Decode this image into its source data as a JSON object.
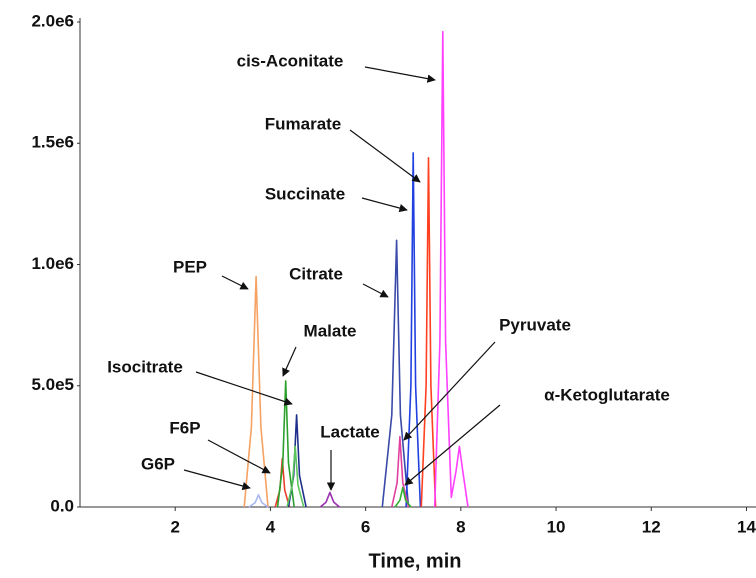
{
  "chart_data": {
    "type": "line",
    "x_label": "Time, min",
    "xlim": [
      0,
      14.2
    ],
    "xticks": [
      2,
      4,
      6,
      8,
      10,
      12,
      14
    ],
    "ylim": [
      0,
      2000000
    ],
    "yticks": [
      {
        "value": 0,
        "label": "0.0"
      },
      {
        "value": 500000,
        "label": "5.0e5"
      },
      {
        "value": 1000000,
        "label": "1.0e6"
      },
      {
        "value": 1500000,
        "label": "1.5e6"
      },
      {
        "value": 2000000,
        "label": "2.0e6"
      }
    ],
    "series": [
      {
        "name": "PEP",
        "color": "#f5a263",
        "x": [
          3.45,
          3.6,
          3.7,
          3.8,
          3.95
        ],
        "values": [
          0,
          330000,
          950000,
          330000,
          0
        ]
      },
      {
        "name": "G6P",
        "color": "#a7b8f2",
        "x": [
          3.55,
          3.68,
          3.75,
          3.82,
          3.95
        ],
        "values": [
          0,
          18000,
          50000,
          18000,
          0
        ]
      },
      {
        "name": "F6P",
        "color": "#e8402a",
        "x": [
          4.1,
          4.2,
          4.25,
          4.3,
          4.4
        ],
        "values": [
          0,
          70000,
          200000,
          70000,
          0
        ]
      },
      {
        "name": "Malate",
        "color": "#2ca02c",
        "x": [
          4.15,
          4.26,
          4.32,
          4.38,
          4.5
        ],
        "values": [
          0,
          180000,
          520000,
          180000,
          0
        ]
      },
      {
        "name": "Isocitrate",
        "color": "#1f2f8a",
        "x": [
          4.38,
          4.49,
          4.55,
          4.61,
          4.75
        ],
        "values": [
          0,
          130000,
          380000,
          130000,
          0
        ]
      },
      {
        "color": "#5cc45c",
        "x": [
          4.35,
          4.46,
          4.52,
          4.58,
          4.7
        ],
        "values": [
          0,
          90000,
          250000,
          90000,
          0
        ]
      },
      {
        "name": "Lactate",
        "color": "#9b30b0",
        "x": [
          5.05,
          5.17,
          5.25,
          5.33,
          5.45
        ],
        "values": [
          0,
          20000,
          60000,
          20000,
          0
        ]
      },
      {
        "name": "Citrate",
        "color": "#3a4aa8",
        "x": [
          6.35,
          6.55,
          6.65,
          6.73,
          6.9
        ],
        "values": [
          0,
          380000,
          1100000,
          380000,
          0
        ]
      },
      {
        "name": "Succinate",
        "color": "#2040e0",
        "x": [
          6.85,
          6.95,
          7.0,
          7.05,
          7.15
        ],
        "values": [
          0,
          500000,
          1460000,
          500000,
          0
        ]
      },
      {
        "name": "Fumarate",
        "color": "#ff4020",
        "x": [
          7.17,
          7.27,
          7.32,
          7.37,
          7.47
        ],
        "values": [
          0,
          500000,
          1440000,
          500000,
          0
        ]
      },
      {
        "name": "cis-Aconitate",
        "color": "#ff40ff",
        "x": [
          7.45,
          7.56,
          7.62,
          7.68,
          7.8,
          7.9,
          7.97,
          8.04,
          8.15
        ],
        "values": [
          0,
          680000,
          1960000,
          680000,
          40000,
          150000,
          250000,
          150000,
          0
        ]
      },
      {
        "name": "Pyruvate",
        "color": "#e040a0",
        "x": [
          6.55,
          6.66,
          6.72,
          6.78,
          6.9
        ],
        "values": [
          0,
          100000,
          290000,
          100000,
          0
        ]
      },
      {
        "name": "α-Ketoglutarate",
        "color": "#30b030",
        "x": [
          6.62,
          6.72,
          6.78,
          6.84,
          6.95
        ],
        "values": [
          0,
          28000,
          80000,
          28000,
          0
        ]
      }
    ]
  }
}
